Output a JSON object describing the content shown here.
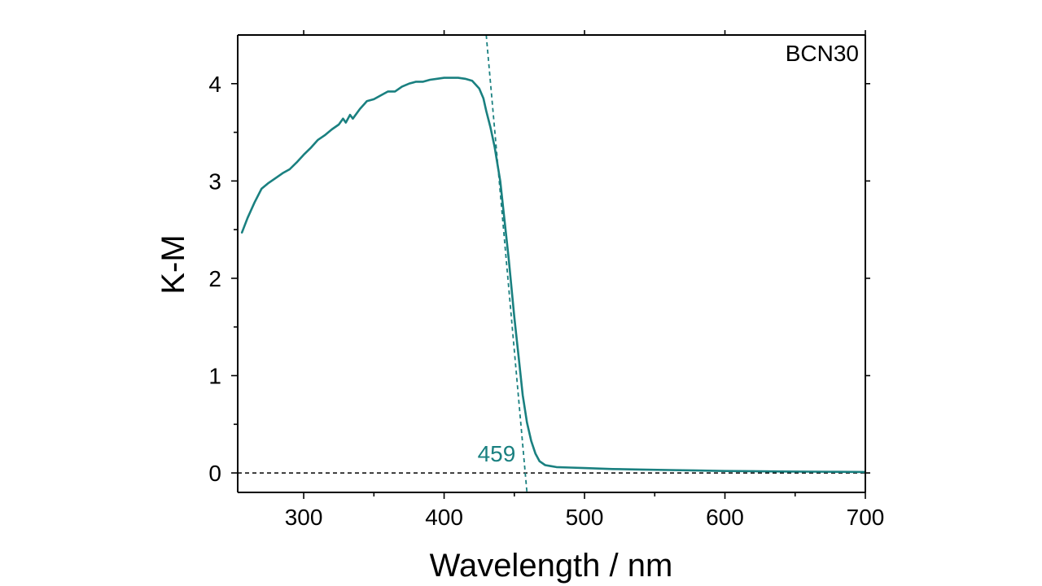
{
  "chart_data": {
    "type": "line",
    "xlabel": "Wavelength / nm",
    "ylabel": "K-M",
    "xlim": [
      253,
      700
    ],
    "ylim": [
      -0.2,
      4.5
    ],
    "x_ticks": [
      300,
      400,
      500,
      600,
      700
    ],
    "y_ticks": [
      0,
      1,
      2,
      3,
      4
    ],
    "grid": false,
    "sample_label": "BCN30",
    "series_color": "#1a8080",
    "baseline_color": "#000000",
    "series": [
      {
        "x": [
          256,
          260,
          265,
          270,
          275,
          280,
          285,
          290,
          295,
          300,
          305,
          310,
          315,
          320,
          325,
          328,
          330,
          333,
          335,
          340,
          345,
          350,
          355,
          360,
          365,
          370,
          375,
          380,
          385,
          390,
          395,
          400,
          405,
          410,
          415,
          420,
          425,
          428,
          430,
          433,
          436,
          440,
          443,
          446,
          450,
          453,
          456,
          459,
          462,
          465,
          468,
          472,
          476,
          480,
          490,
          500,
          520,
          540,
          560,
          580,
          600,
          620,
          640,
          660,
          680,
          700
        ],
        "y": [
          2.47,
          2.62,
          2.78,
          2.92,
          2.98,
          3.03,
          3.08,
          3.12,
          3.19,
          3.27,
          3.34,
          3.42,
          3.47,
          3.53,
          3.58,
          3.64,
          3.6,
          3.68,
          3.64,
          3.74,
          3.82,
          3.84,
          3.88,
          3.92,
          3.92,
          3.97,
          4.0,
          4.02,
          4.02,
          4.04,
          4.05,
          4.06,
          4.06,
          4.06,
          4.05,
          4.03,
          3.95,
          3.85,
          3.72,
          3.55,
          3.35,
          3.0,
          2.6,
          2.2,
          1.6,
          1.2,
          0.8,
          0.52,
          0.33,
          0.2,
          0.12,
          0.08,
          0.07,
          0.06,
          0.055,
          0.05,
          0.04,
          0.035,
          0.03,
          0.025,
          0.02,
          0.018,
          0.015,
          0.013,
          0.012,
          0.01
        ]
      }
    ],
    "tangent": {
      "x": [
        430,
        459
      ],
      "y": [
        4.5,
        -0.2
      ]
    },
    "baseline": {
      "x": [
        253,
        700
      ],
      "y": [
        0,
        0
      ]
    },
    "edge_annotation": {
      "text": "459",
      "x": 459
    }
  }
}
